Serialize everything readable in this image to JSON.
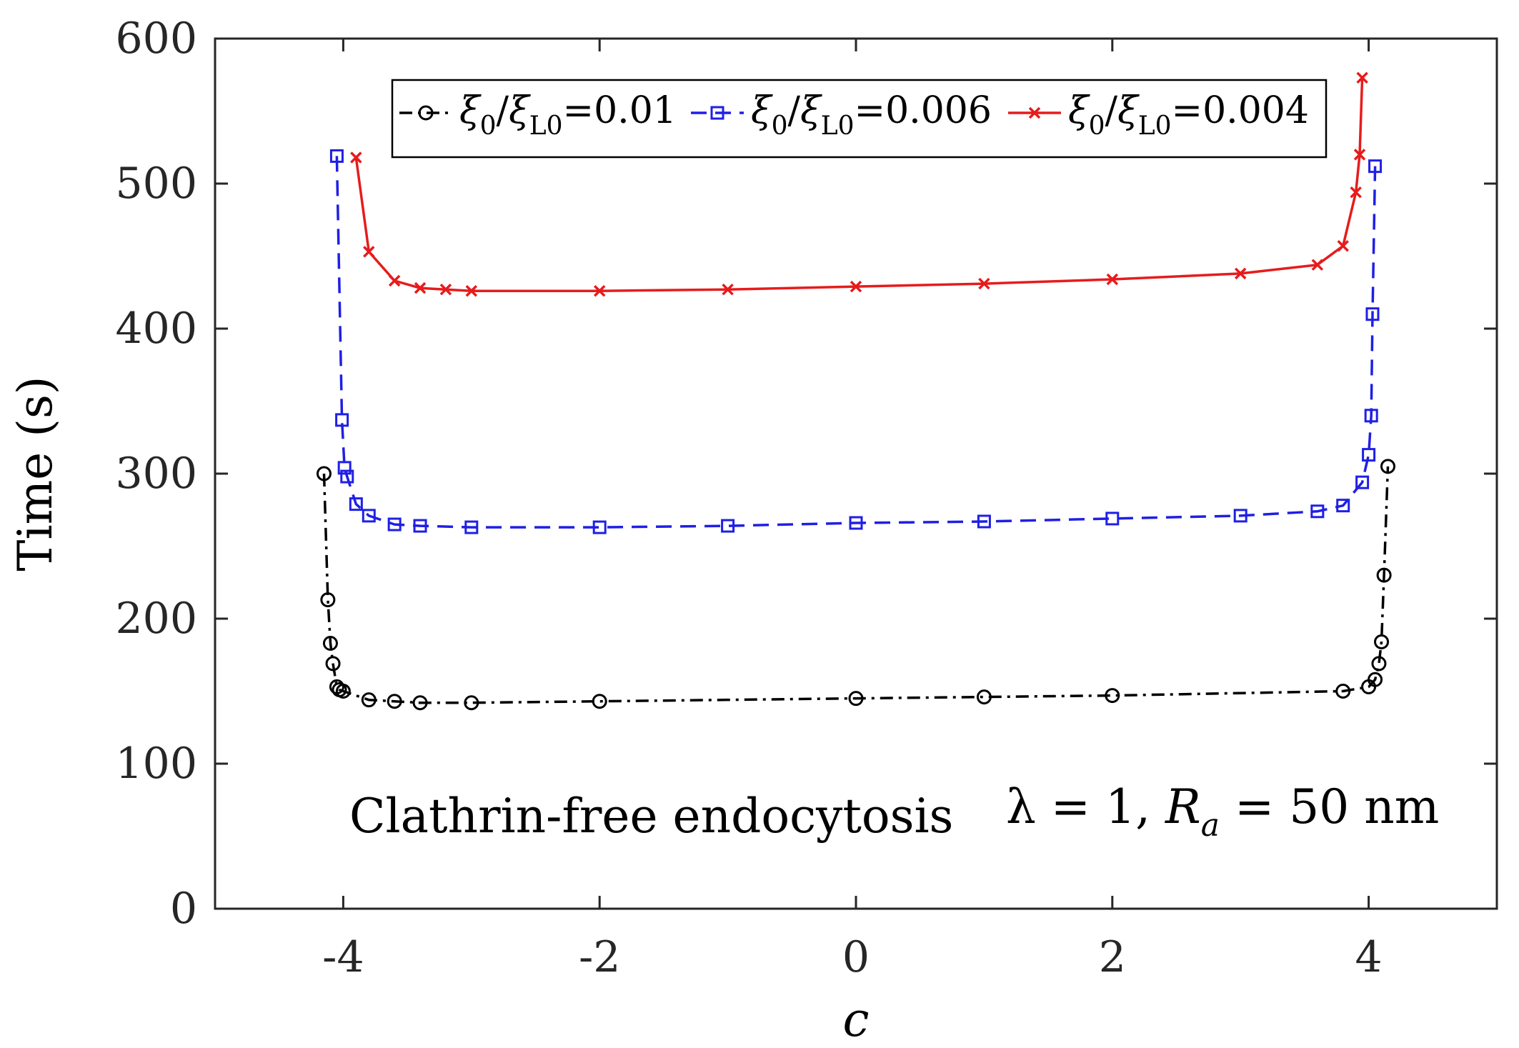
{
  "chart_data": {
    "type": "line",
    "title": "",
    "xlabel": "c",
    "ylabel": "Time (s)",
    "xlim": [
      -5,
      5
    ],
    "ylim": [
      0,
      600
    ],
    "xticks": [
      -4,
      -2,
      0,
      2,
      4
    ],
    "yticks": [
      0,
      100,
      200,
      300,
      400,
      500,
      600
    ],
    "xtick_labels": [
      "-4",
      "-2",
      "0",
      "2",
      "4"
    ],
    "ytick_labels": [
      "0",
      "100",
      "200",
      "300",
      "400",
      "500",
      "600"
    ],
    "grid": false,
    "legend_position": "top",
    "annotation": {
      "text": "Clathrin-free endocytosis",
      "params_prefix": "λ = 1, ",
      "params_var": "R",
      "params_sub": "a",
      "params_suffix": " = 50 nm"
    },
    "series": [
      {
        "name": "ξ0/ξL0=0.01",
        "legend_sym": "ξ",
        "legend_sub0": "0",
        "legend_sub1": "L0",
        "legend_value": "=0.01",
        "color": "#000000",
        "dash": "dashdot",
        "marker": "circle",
        "x": [
          -4.15,
          -4.12,
          -4.1,
          -4.08,
          -4.05,
          -4.03,
          -4.0,
          -3.8,
          -3.6,
          -3.4,
          -3.0,
          -2.0,
          0.0,
          1.0,
          2.0,
          3.8,
          4.0,
          4.05,
          4.08,
          4.1,
          4.12,
          4.15
        ],
        "y": [
          300,
          213,
          183,
          169,
          153,
          151,
          150,
          144,
          143,
          142,
          142,
          143,
          145,
          146,
          147,
          150,
          153,
          158,
          169,
          184,
          230,
          305
        ]
      },
      {
        "name": "ξ0/ξL0=0.006",
        "legend_sym": "ξ",
        "legend_sub0": "0",
        "legend_sub1": "L0",
        "legend_value": "=0.006",
        "color": "#1f1fe6",
        "dash": "dashed",
        "marker": "square",
        "x": [
          -4.05,
          -4.01,
          -3.99,
          -3.97,
          -3.9,
          -3.8,
          -3.6,
          -3.4,
          -3.0,
          -2.0,
          -1.0,
          0.0,
          1.0,
          2.0,
          3.0,
          3.6,
          3.8,
          3.95,
          4.0,
          4.02,
          4.03,
          4.05
        ],
        "y": [
          519,
          337,
          304,
          298,
          279,
          271,
          265,
          264,
          263,
          263,
          264,
          266,
          267,
          269,
          271,
          274,
          278,
          294,
          313,
          340,
          410,
          512
        ]
      },
      {
        "name": "ξ0/ξL0=0.004",
        "legend_sym": "ξ",
        "legend_sub0": "0",
        "legend_sub1": "L0",
        "legend_value": "=0.004",
        "color": "#e61c1c",
        "dash": "solid",
        "marker": "x",
        "x": [
          -3.9,
          -3.8,
          -3.6,
          -3.4,
          -3.2,
          -3.0,
          -2.0,
          -1.0,
          0.0,
          1.0,
          2.0,
          3.0,
          3.6,
          3.8,
          3.9,
          3.93,
          3.95
        ],
        "y": [
          518,
          453,
          433,
          428,
          427,
          426,
          426,
          427,
          429,
          431,
          434,
          438,
          444,
          457,
          494,
          520,
          573
        ]
      }
    ]
  }
}
